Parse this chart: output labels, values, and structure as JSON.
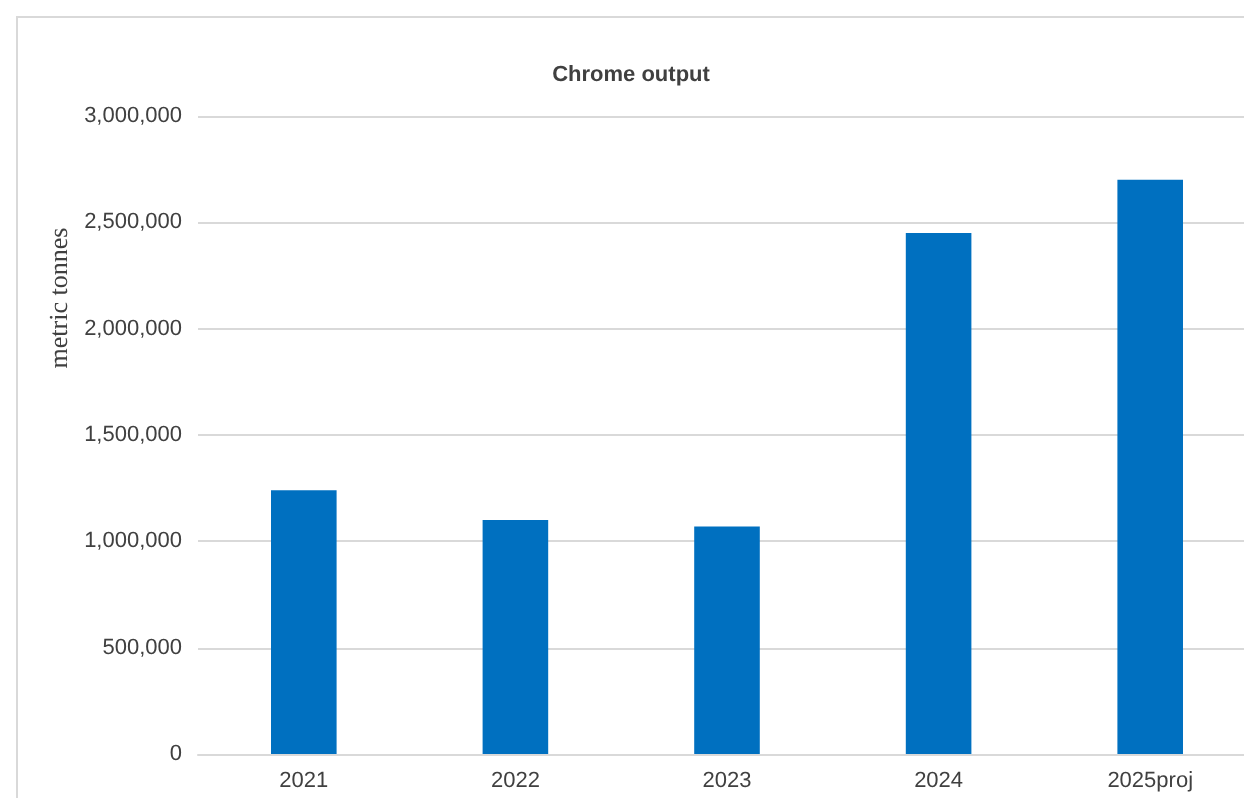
{
  "chart_data": {
    "type": "bar",
    "title": "Chrome output",
    "ylabel": "metric tonnes",
    "categories": [
      "2021",
      "2022",
      "2023",
      "2024",
      "2025proj"
    ],
    "values": [
      1240000,
      1100000,
      1070000,
      2450000,
      2700000
    ],
    "color": "#0070c0",
    "ylim": [
      0,
      3000000
    ],
    "yticks": [
      0,
      {
        "value": 500000,
        "label": "500,000"
      },
      {
        "value": 1000000,
        "label": "1,000,000"
      },
      {
        "value": 1500000,
        "label": "1,500,000"
      },
      {
        "value": 2000000,
        "label": "2,000,000"
      },
      {
        "value": 2500000,
        "label": "2,500,000"
      },
      {
        "value": 3000000,
        "label": "3,000,000"
      }
    ],
    "grid": "y"
  }
}
